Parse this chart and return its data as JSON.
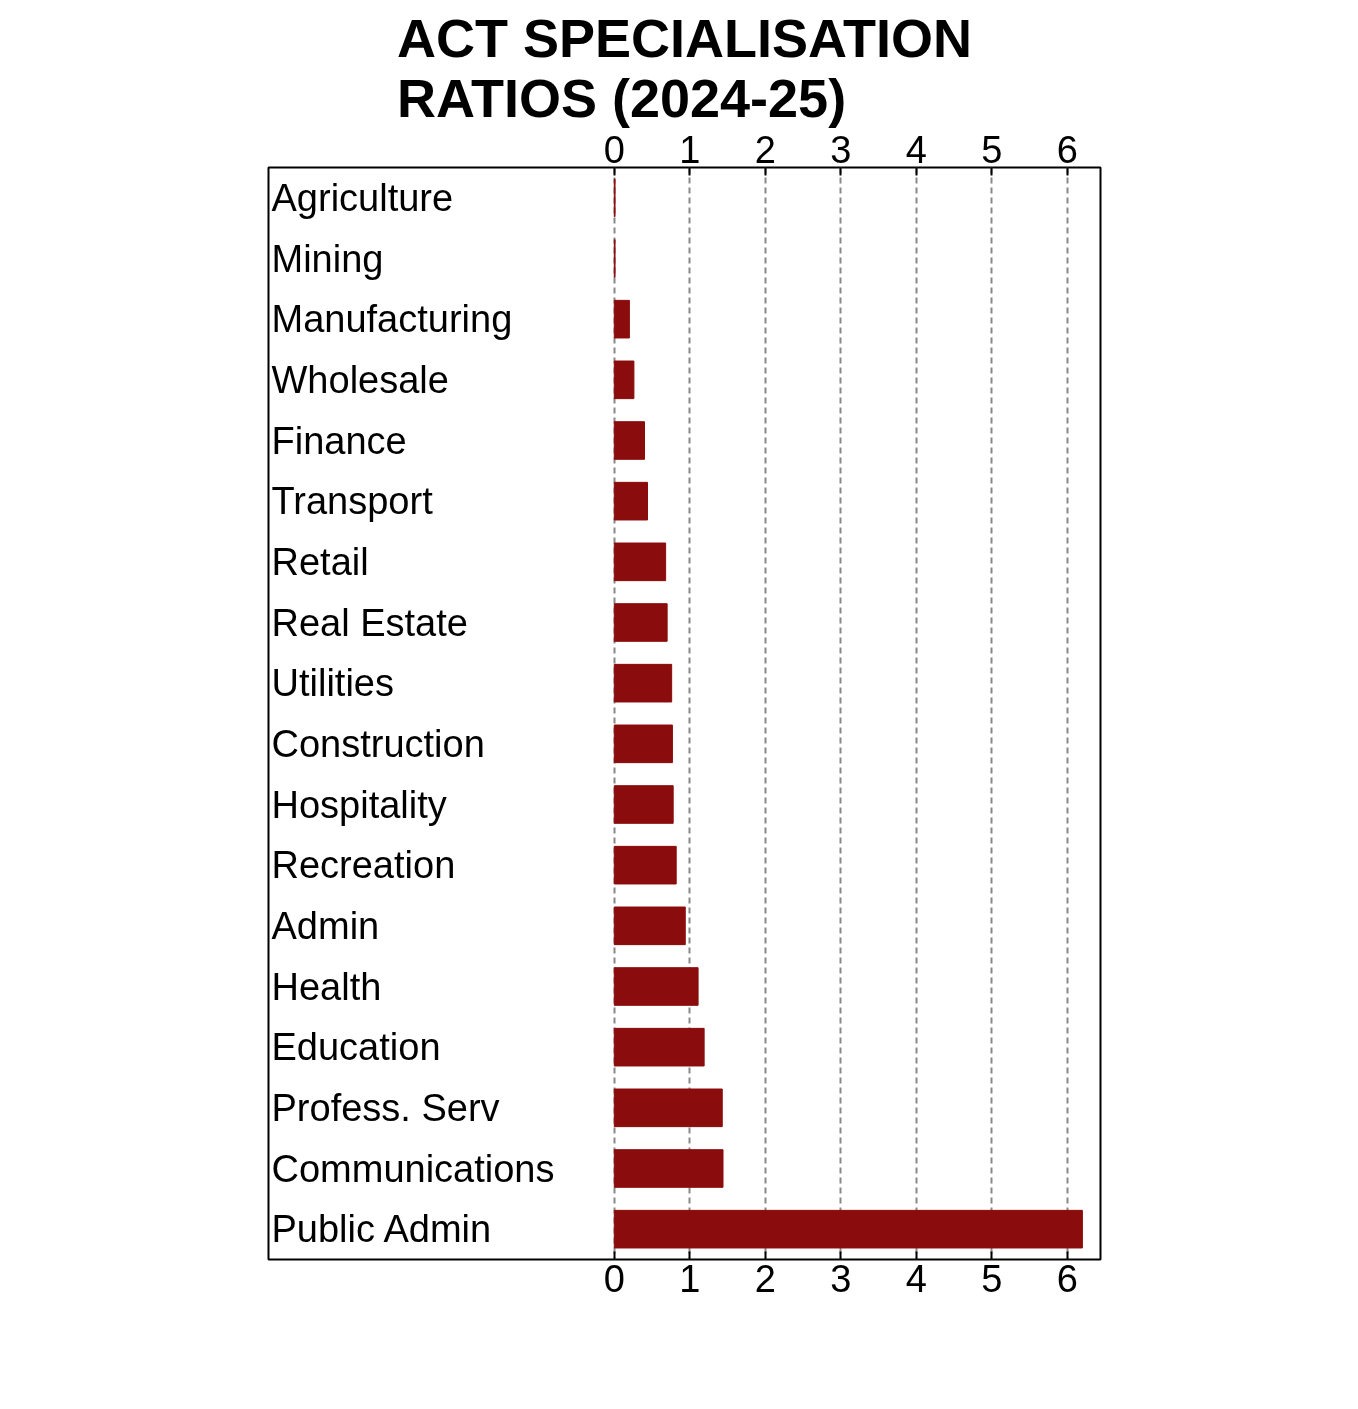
{
  "chart_data": {
    "type": "bar",
    "orientation": "horizontal",
    "title": "ACT SPECIALISATION RATIOS (2024-25)",
    "categories": [
      "Agriculture",
      "Mining",
      "Manufacturing",
      "Wholesale",
      "Finance",
      "Transport",
      "Retail",
      "Real Estate",
      "Utilities",
      "Construction",
      "Hospitality",
      "Recreation",
      "Admin",
      "Health",
      "Education",
      "Profess. Serv",
      "Communications",
      "Public Admin"
    ],
    "values": [
      0.01,
      0.01,
      0.2,
      0.26,
      0.4,
      0.44,
      0.68,
      0.7,
      0.76,
      0.77,
      0.78,
      0.82,
      0.94,
      1.11,
      1.19,
      1.43,
      1.44,
      6.2
    ],
    "color": "#8b0c0c",
    "xlim": [
      -4.58,
      6.44
    ],
    "xticks": [
      0,
      1,
      2,
      3,
      4,
      5,
      6
    ],
    "x2lim": [
      -4.58,
      6.44
    ],
    "x2ticks": [
      0,
      1,
      2,
      3,
      4,
      5,
      6
    ],
    "grid": "x",
    "line_style": "dashed"
  }
}
